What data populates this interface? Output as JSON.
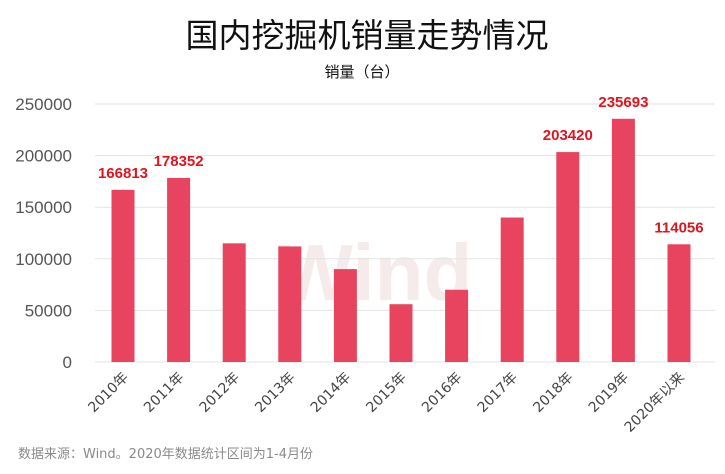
{
  "chart_data": {
    "type": "bar",
    "title": "国内挖掘机销量走势情况",
    "ylabel": "销量（台）",
    "xlabel": "",
    "categories": [
      "2010年",
      "2011年",
      "2012年",
      "2013年",
      "2014年",
      "2015年",
      "2016年",
      "2017年",
      "2018年",
      "2019年",
      "2020年以来"
    ],
    "values": [
      166813,
      178352,
      115000,
      112000,
      90000,
      56000,
      70000,
      140000,
      203420,
      235693,
      114056
    ],
    "data_labels": [
      "166813",
      "178352",
      null,
      null,
      null,
      null,
      null,
      null,
      "203420",
      "235693",
      "114056"
    ],
    "ylim": [
      0,
      250000
    ],
    "yticks": [
      "0",
      "50000",
      "100000",
      "150000",
      "200000",
      "250000"
    ],
    "grid": true,
    "bar_color": "#e8435f",
    "label_color": "#e0141e",
    "source_note": "数据来源：Wind。2020年数据统计区间为1-4月份",
    "watermark": "Wind"
  }
}
